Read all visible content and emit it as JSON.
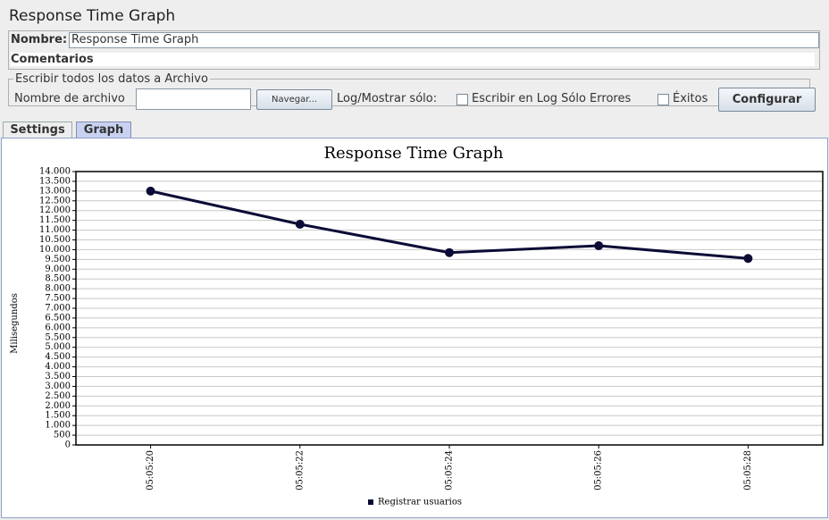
{
  "header": {
    "title": "Response Time Graph"
  },
  "form": {
    "name_label": "Nombre:",
    "name_value": "Response Time Graph",
    "comments_label": "Comentarios",
    "file_group": "Escribir todos los datos a Archivo",
    "file_label": "Nombre de archivo",
    "browse_button": "Navegar...",
    "log_label": "Log/Mostrar sólo:",
    "errors_checkbox": "Escribir en Log Sólo Errores",
    "success_checkbox": "Éxitos",
    "configure_button": "Configurar"
  },
  "tabs": [
    "Settings",
    "Graph"
  ],
  "chart_data": {
    "type": "line",
    "title": "Response Time Graph",
    "y_label": "Milisegundos",
    "categories": [
      "05:05:20",
      "05:05:22",
      "05:05:24",
      "05:05:26",
      "05:05:28"
    ],
    "series": [
      {
        "name": "Registrar usuarios",
        "color": "#0b0b36",
        "values": [
          13000,
          11300,
          9850,
          10200,
          9550
        ]
      }
    ],
    "ylim": [
      0,
      14000
    ],
    "yticks": [
      0,
      500,
      {
        "value": 1000,
        "label": "1.000"
      },
      {
        "value": 1500,
        "label": "1.500"
      },
      {
        "value": 2000,
        "label": "2.000"
      },
      {
        "value": 2500,
        "label": "2.500"
      },
      {
        "value": 3000,
        "label": "3.000"
      },
      {
        "value": 3500,
        "label": "3.500"
      },
      {
        "value": 4000,
        "label": "4.000"
      },
      {
        "value": 4500,
        "label": "4.500"
      },
      {
        "value": 5000,
        "label": "5.000"
      },
      {
        "value": 5500,
        "label": "5.500"
      },
      {
        "value": 6000,
        "label": "6.000"
      },
      {
        "value": 6500,
        "label": "6.500"
      },
      {
        "value": 7000,
        "label": "7.000"
      },
      {
        "value": 7500,
        "label": "7.500"
      },
      {
        "value": 8000,
        "label": "8.000"
      },
      {
        "value": 8500,
        "label": "8.500"
      },
      {
        "value": 9000,
        "label": "9.000"
      },
      {
        "value": 9500,
        "label": "9.500"
      },
      {
        "value": 10000,
        "label": "10.000"
      },
      {
        "value": 10500,
        "label": "10.500"
      },
      {
        "value": 11000,
        "label": "11.000"
      },
      {
        "value": 11500,
        "label": "11.500"
      },
      {
        "value": 12000,
        "label": "12.000"
      },
      {
        "value": 12500,
        "label": "12.500"
      },
      {
        "value": 13000,
        "label": "13.000"
      },
      {
        "value": 13500,
        "label": "13.500"
      },
      {
        "value": 14000,
        "label": "14.000"
      }
    ],
    "grid": true,
    "legend": "bottom"
  }
}
